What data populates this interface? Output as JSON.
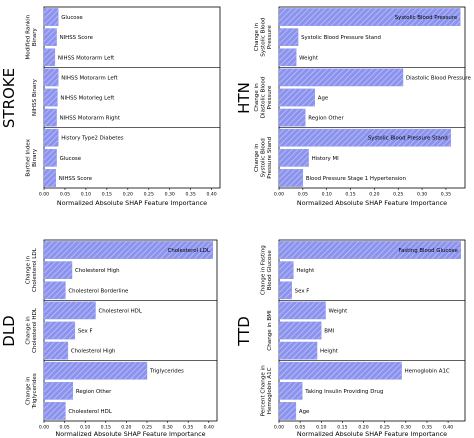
{
  "bar_color": "#8b93ee",
  "hatch_color": "#c8ccf7",
  "chart_data": [
    {
      "type": "bar",
      "orientation": "horizontal",
      "title": "STROKE",
      "xlabel": "Normalized Absolute SHAP Feature Importance",
      "xticks": [
        "0.00",
        "0.05",
        "0.10",
        "0.15",
        "0.20",
        "0.25",
        "0.30",
        "0.35",
        "0.40"
      ],
      "xlim": [
        0,
        0.42
      ],
      "groups": [
        {
          "label": "Modified Rankin Binary",
          "bars": [
            {
              "label": "Glucose",
              "value": 0.034,
              "highlight": false
            },
            {
              "label": "NIHSS Score",
              "value": 0.03,
              "highlight": false
            },
            {
              "label": "NIHSS Motorarm Left",
              "value": 0.026,
              "highlight": false
            }
          ]
        },
        {
          "label": "NIHSS Binary",
          "bars": [
            {
              "label": "NIHSS Motorarm Left",
              "value": 0.034,
              "highlight": false
            },
            {
              "label": "NIHSS Motorleg Left",
              "value": 0.032,
              "highlight": false
            },
            {
              "label": "NIHSS Motorarm Right",
              "value": 0.03,
              "highlight": false
            }
          ]
        },
        {
          "label": "Barthel Index Binary",
          "bars": [
            {
              "label": "History Type2 Diabetes",
              "value": 0.034,
              "highlight": false
            },
            {
              "label": "Glucose",
              "value": 0.03,
              "highlight": false
            },
            {
              "label": "NIHSS Score",
              "value": 0.028,
              "highlight": false
            }
          ]
        }
      ]
    },
    {
      "type": "bar",
      "orientation": "horizontal",
      "title": "HTN",
      "xlabel": "Normalized Absolute SHAP Feature Importance",
      "xticks": [
        "0.00",
        "0.05",
        "0.10",
        "0.15",
        "0.20",
        "0.25",
        "0.30",
        "0.35"
      ],
      "xlim": [
        0,
        0.39
      ],
      "groups": [
        {
          "label": "Change in Systolic Blood Pressure",
          "bars": [
            {
              "label": "Systolic Blood Pressure",
              "value": 0.38,
              "highlight": true
            },
            {
              "label": "Systolic Blood Pressure Stand",
              "value": 0.04,
              "highlight": false
            },
            {
              "label": "Weight",
              "value": 0.036,
              "highlight": false
            }
          ]
        },
        {
          "label": "Change in Diastolic Blood Pressure",
          "bars": [
            {
              "label": "Diastolic Blood Pressure",
              "value": 0.26,
              "highlight": false
            },
            {
              "label": "Age",
              "value": 0.075,
              "highlight": false
            },
            {
              "label": "Region Other",
              "value": 0.055,
              "highlight": false
            }
          ]
        },
        {
          "label": "Change in Systolic Blood Pressure Stand",
          "bars": [
            {
              "label": "Systolic Blood Pressure Stand",
              "value": 0.36,
              "highlight": true
            },
            {
              "label": "History MI",
              "value": 0.062,
              "highlight": false
            },
            {
              "label": "Blood Pressure Stage 1 Hypertension",
              "value": 0.05,
              "highlight": false
            }
          ]
        }
      ]
    },
    {
      "type": "bar",
      "orientation": "horizontal",
      "title": "DLD",
      "xlabel": "Normalized Absolute SHAP Feature Importance",
      "xticks": [
        "0.00",
        "0.05",
        "0.10",
        "0.15",
        "0.20",
        "0.25",
        "0.30",
        "0.35",
        "0.40"
      ],
      "xlim": [
        0,
        0.42
      ],
      "groups": [
        {
          "label": "Change in Cholesterol LDL",
          "bars": [
            {
              "label": "Cholesterol LDL",
              "value": 0.41,
              "highlight": true
            },
            {
              "label": "Cholesterol High",
              "value": 0.068,
              "highlight": false
            },
            {
              "label": "Cholesterol Borderline",
              "value": 0.052,
              "highlight": false
            }
          ]
        },
        {
          "label": "Change in Cholesterol HDL",
          "bars": [
            {
              "label": "Cholesterol HDL",
              "value": 0.125,
              "highlight": false
            },
            {
              "label": "Sex F",
              "value": 0.075,
              "highlight": false
            },
            {
              "label": "Cholesterol High",
              "value": 0.058,
              "highlight": false
            }
          ]
        },
        {
          "label": "Change in Triglycerides",
          "bars": [
            {
              "label": "Triglycerides",
              "value": 0.25,
              "highlight": false
            },
            {
              "label": "Region Other",
              "value": 0.07,
              "highlight": false
            },
            {
              "label": "Cholesterol HDL",
              "value": 0.052,
              "highlight": false
            }
          ]
        }
      ]
    },
    {
      "type": "bar",
      "orientation": "horizontal",
      "title": "TTD",
      "xlabel": "Normalized Absolute SHAP Feature Importance",
      "xticks": [
        "0.00",
        "0.05",
        "0.10",
        "0.15",
        "0.20",
        "0.25",
        "0.30",
        "0.35",
        "0.40"
      ],
      "xlim": [
        0,
        0.44
      ],
      "groups": [
        {
          "label": "Change in Fasting Blood Glucose",
          "bars": [
            {
              "label": "Fasting Blood Glucose",
              "value": 0.43,
              "highlight": true
            },
            {
              "label": "Height",
              "value": 0.034,
              "highlight": false
            },
            {
              "label": "Sex F",
              "value": 0.03,
              "highlight": false
            }
          ]
        },
        {
          "label": "Change in BMI",
          "bars": [
            {
              "label": "Weight",
              "value": 0.11,
              "highlight": false
            },
            {
              "label": "BMI",
              "value": 0.1,
              "highlight": false
            },
            {
              "label": "Height",
              "value": 0.09,
              "highlight": false
            }
          ]
        },
        {
          "label": "Percent Change in Hemoglobin A1C",
          "bars": [
            {
              "label": "Hemoglobin A1C",
              "value": 0.29,
              "highlight": false
            },
            {
              "label": "Taking Insulin Providing Drug",
              "value": 0.055,
              "highlight": false
            },
            {
              "label": "Age",
              "value": 0.04,
              "highlight": false
            }
          ]
        }
      ]
    }
  ]
}
